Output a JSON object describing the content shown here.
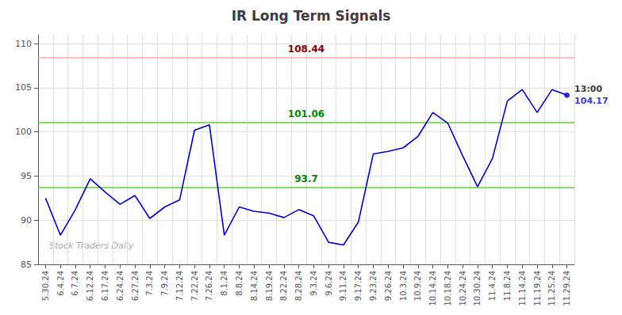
{
  "chart_data": {
    "type": "line",
    "title": "IR Long Term Signals",
    "categories": [
      "5.30.24",
      "6.4.24",
      "6.7.24",
      "6.12.24",
      "6.17.24",
      "6.24.24",
      "6.27.24",
      "7.3.24",
      "7.9.24",
      "7.12.24",
      "7.22.24",
      "7.26.24",
      "8.1.24",
      "8.8.24",
      "8.14.24",
      "8.19.24",
      "8.22.24",
      "8.28.24",
      "9.3.24",
      "9.6.24",
      "9.11.24",
      "9.17.24",
      "9.23.24",
      "9.26.24",
      "10.3.24",
      "10.9.24",
      "10.14.24",
      "10.18.24",
      "10.24.24",
      "10.30.24",
      "11.4.24",
      "11.8.24",
      "11.14.24",
      "11.19.24",
      "11.25.24",
      "11.29.24"
    ],
    "values": [
      92.5,
      88.3,
      91.2,
      94.7,
      93.2,
      91.8,
      92.8,
      90.2,
      91.5,
      92.3,
      100.2,
      100.8,
      88.3,
      91.5,
      91.0,
      90.8,
      90.3,
      91.2,
      90.5,
      87.5,
      87.2,
      89.8,
      97.5,
      97.8,
      98.2,
      99.5,
      102.2,
      101.0,
      97.3,
      93.8,
      97.0,
      103.5,
      104.8,
      102.2,
      104.8,
      104.17
    ],
    "color": "#0000dd",
    "ylim": [
      85,
      111
    ],
    "yticks": [
      85,
      90,
      95,
      100,
      105,
      110
    ],
    "grid": true,
    "hlines": [
      {
        "value": 108.44,
        "label": "108.44",
        "color": "#ffaaaa",
        "label_color": "#880000"
      },
      {
        "value": 101.06,
        "label": "101.06",
        "color": "#66cc44",
        "label_color": "#008800"
      },
      {
        "value": 93.7,
        "label": "93.7",
        "color": "#66cc44",
        "label_color": "#008800"
      }
    ],
    "last_point_annotations": [
      {
        "text": "13:00",
        "color": "#000000"
      },
      {
        "text": "104.17",
        "color": "#0000dd"
      }
    ],
    "watermark": {
      "text": "Stock Traders Daily",
      "color": "#aaaaaa"
    }
  }
}
